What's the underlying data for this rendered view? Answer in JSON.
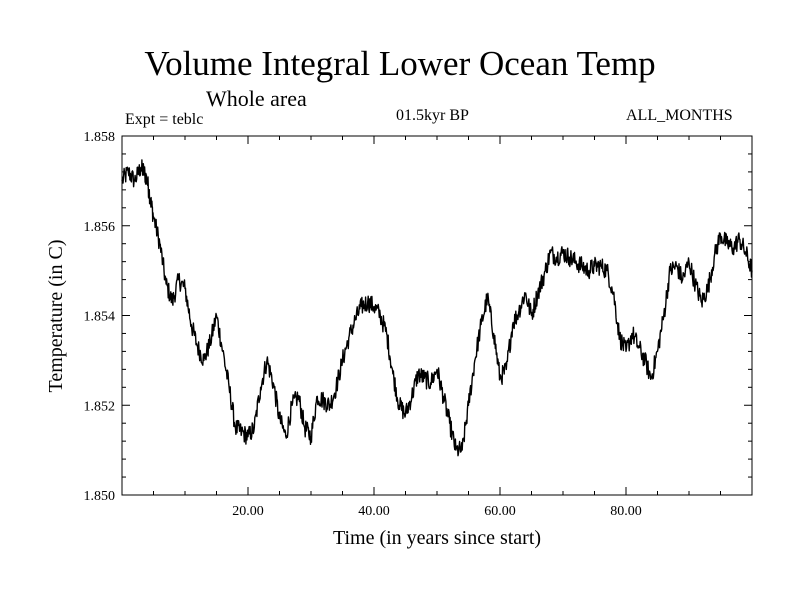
{
  "header": {
    "title": "Volume Integral Lower Ocean Temp",
    "subtitle": "Whole area",
    "expt": "Expt = teblc",
    "period": "01.5kyr BP",
    "months": "ALL_MONTHS"
  },
  "chart_data": {
    "type": "line",
    "title": "Volume Integral Lower Ocean Temp",
    "subtitle": "Whole area",
    "xlabel": "Time (in years since start)",
    "ylabel": "Temperature (in C)",
    "xlim": [
      0,
      100
    ],
    "ylim": [
      1.85,
      1.858
    ],
    "x_ticks": [
      20,
      40,
      60,
      80
    ],
    "x_tick_labels": [
      "20.00",
      "40.00",
      "60.00",
      "80.00"
    ],
    "y_ticks": [
      1.85,
      1.852,
      1.854,
      1.856,
      1.858
    ],
    "y_tick_labels": [
      "1.850",
      "1.852",
      "1.854",
      "1.856",
      "1.858"
    ],
    "grid": false,
    "series": [
      {
        "name": "Volume Integral Lower Ocean Temp",
        "x": [
          0,
          1,
          2,
          3,
          3.5,
          4,
          4.5,
          5,
          6,
          7,
          8,
          9,
          10,
          11,
          12,
          13,
          14,
          15,
          16,
          17,
          18,
          19,
          20,
          21,
          22,
          23,
          24,
          25,
          26,
          27,
          28,
          29,
          30,
          31,
          32,
          33,
          34,
          35,
          36,
          37,
          38,
          39,
          40,
          41,
          42,
          43,
          44,
          45,
          46,
          47,
          48,
          49,
          50,
          51,
          52,
          53,
          54,
          55,
          56,
          57,
          58,
          59,
          60,
          61,
          62,
          63,
          64,
          65,
          66,
          67,
          68,
          69,
          70,
          71,
          72,
          73,
          74,
          75,
          76,
          77,
          78,
          79,
          80,
          81,
          82,
          83,
          84,
          85,
          86,
          87,
          88,
          89,
          90,
          91,
          92,
          93,
          94,
          95,
          96,
          97,
          98,
          99,
          100
        ],
        "y": [
          1.857,
          1.8572,
          1.857,
          1.8573,
          1.8572,
          1.857,
          1.8566,
          1.8562,
          1.8556,
          1.8547,
          1.8543,
          1.8548,
          1.8546,
          1.8538,
          1.8533,
          1.853,
          1.8534,
          1.854,
          1.8532,
          1.8524,
          1.8515,
          1.8514,
          1.8513,
          1.8515,
          1.8524,
          1.853,
          1.8525,
          1.8517,
          1.8513,
          1.852,
          1.8522,
          1.8515,
          1.8513,
          1.8522,
          1.8521,
          1.852,
          1.8524,
          1.853,
          1.8535,
          1.8539,
          1.8542,
          1.8543,
          1.8542,
          1.854,
          1.8536,
          1.8527,
          1.852,
          1.8518,
          1.8522,
          1.8527,
          1.8526,
          1.8525,
          1.8528,
          1.8522,
          1.8516,
          1.851,
          1.851,
          1.852,
          1.853,
          1.8538,
          1.8544,
          1.8536,
          1.8526,
          1.8528,
          1.8538,
          1.8541,
          1.8545,
          1.854,
          1.8545,
          1.8549,
          1.8554,
          1.8553,
          1.8554,
          1.8553,
          1.8552,
          1.8551,
          1.855,
          1.8551,
          1.8551,
          1.855,
          1.8545,
          1.8535,
          1.8532,
          1.8536,
          1.8533,
          1.853,
          1.8526,
          1.8532,
          1.854,
          1.855,
          1.8551,
          1.8548,
          1.8552,
          1.8547,
          1.8543,
          1.8546,
          1.8553,
          1.8558,
          1.8556,
          1.8555,
          1.8557,
          1.8554,
          1.855
        ]
      }
    ]
  }
}
